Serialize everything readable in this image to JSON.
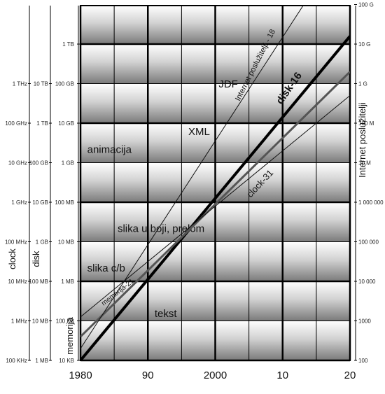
{
  "chart_data": {
    "type": "line",
    "x_ticks": [
      "1980",
      "90",
      "2000",
      "10",
      "20"
    ],
    "x_years": [
      1980,
      1990,
      2000,
      2010,
      2020
    ],
    "axes": [
      {
        "name": "clock",
        "ticks": [
          "100 KHz",
          "1 MHz",
          "10 MHz",
          "100 MHz",
          "1 GHz",
          "10 GHz",
          "100 GHz",
          "1 THz"
        ]
      },
      {
        "name": "disk",
        "ticks": [
          "1 MB",
          "10 MB",
          "100 MB",
          "1 GB",
          "10 GB",
          "100 GB",
          "1 TB",
          "10 TB"
        ]
      },
      {
        "name": "memorija",
        "ticks": [
          "10 KB",
          "100 KB",
          "1 MB",
          "10 MB",
          "100 MB",
          "1 GB",
          "10 GB",
          "100 GB",
          "1 TB"
        ]
      },
      {
        "name": "Internet poslužitelji",
        "ticks": [
          "100",
          "1000",
          "10 000",
          "100 000",
          "1 000 000",
          "10 M",
          "100 M",
          "1 G",
          "10 G",
          "100 G"
        ]
      }
    ],
    "y_scale": "log (one decade per band)",
    "series": [
      {
        "name": "disk-16",
        "color": "#000000",
        "width": 4,
        "points": [
          [
            1980,
            0.0
          ],
          [
            2020,
            8.2
          ]
        ]
      },
      {
        "name": "clock-31",
        "color": "#555555",
        "width": 3,
        "points": [
          [
            1980,
            0.6
          ],
          [
            2020,
            7.3
          ]
        ]
      },
      {
        "name": "memorija-21",
        "color": "#111111",
        "width": 1,
        "points": [
          [
            1980,
            1.1
          ],
          [
            2020,
            6.7
          ]
        ]
      },
      {
        "name": "Internet poslužitelji - 18",
        "color": "#111111",
        "width": 1,
        "points": [
          [
            1980,
            0.3
          ],
          [
            2020,
            10.8
          ]
        ]
      }
    ],
    "series_label_text": [
      "disk-16",
      "clock-31",
      "memorija-21",
      "Internet poslužitelji - 18"
    ],
    "regions": [
      {
        "label": "tekst",
        "x": 1991,
        "level": 1.1
      },
      {
        "label": "slika c/b",
        "x": 1981,
        "level": 2.25
      },
      {
        "label": "slika u boji, prelom",
        "x": 1985.5,
        "level": 3.25
      },
      {
        "label": "animacija",
        "x": 1981,
        "level": 5.25
      },
      {
        "label": "XML",
        "x": 1996,
        "level": 5.7
      },
      {
        "label": "JDF",
        "x": 2000.5,
        "level": 6.9
      }
    ],
    "grid": true,
    "legend": "none"
  }
}
